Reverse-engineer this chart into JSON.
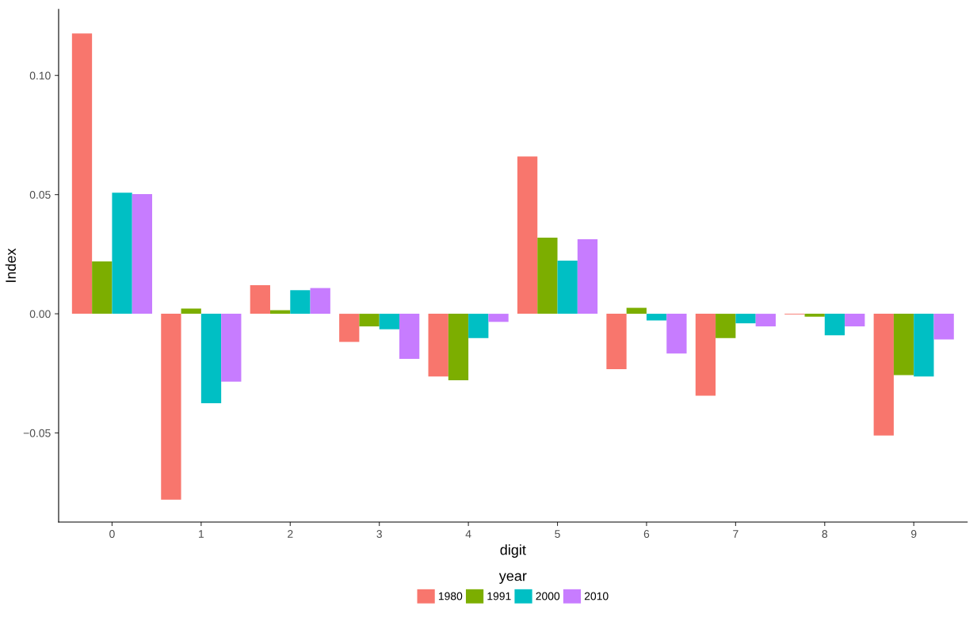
{
  "chart_data": {
    "type": "bar",
    "xlabel": "digit",
    "ylabel": "Index",
    "legend_title": "year",
    "categories": [
      "0",
      "1",
      "2",
      "3",
      "4",
      "5",
      "6",
      "7",
      "8",
      "9"
    ],
    "series": [
      {
        "name": "1980",
        "color": "#f8766d",
        "values": [
          0.1176,
          -0.078,
          0.012,
          -0.0118,
          -0.0263,
          0.066,
          -0.0232,
          -0.0344,
          -0.0003,
          -0.0511
        ]
      },
      {
        "name": "1991",
        "color": "#7cae00",
        "values": [
          0.022,
          0.0022,
          0.0015,
          -0.0053,
          -0.0279,
          0.0319,
          0.0025,
          -0.0102,
          -0.0012,
          -0.0257
        ]
      },
      {
        "name": "2000",
        "color": "#00bfc4",
        "values": [
          0.0508,
          -0.0375,
          0.0099,
          -0.0065,
          -0.0102,
          0.0223,
          -0.0028,
          -0.004,
          -0.009,
          -0.0263
        ]
      },
      {
        "name": "2010",
        "color": "#c77cff",
        "values": [
          0.0502,
          -0.0285,
          0.0108,
          -0.0189,
          -0.0034,
          0.0313,
          -0.0167,
          -0.0053,
          -0.0053,
          -0.0108
        ]
      }
    ],
    "ylim": [
      -0.0874,
      0.1277
    ],
    "yticks": [
      {
        "value": -0.05,
        "label": "−0.05"
      },
      {
        "value": 0,
        "label": "0.00"
      },
      {
        "value": 0.05,
        "label": "0.05"
      },
      {
        "value": 0.1,
        "label": "0.10"
      }
    ],
    "grid": false,
    "legend": "bottom"
  }
}
